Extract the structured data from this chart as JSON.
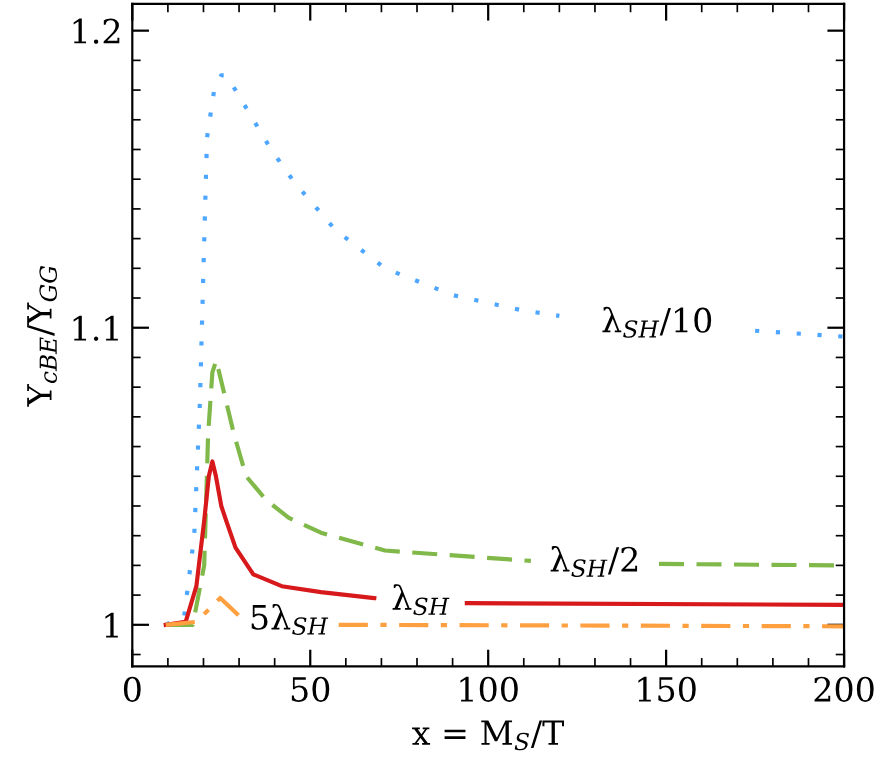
{
  "chart_data": {
    "type": "line",
    "xlabel": "x = M$_{S}$/T",
    "ylabel": "Y$_{cBE}$/Y$_{GG}$",
    "xlim": [
      0,
      200
    ],
    "ylim": [
      0.986,
      1.209
    ],
    "xticks": [
      0,
      50,
      100,
      150,
      200
    ],
    "yticks": [
      1,
      {
        "value": 1.1,
        "label": "1.1"
      },
      {
        "value": 1.2,
        "label": "1.2"
      }
    ],
    "grid": false,
    "legend": false,
    "series": [
      {
        "name": "λ$_{SH}$/10",
        "color": "#4da6ff",
        "line_style": "dotted",
        "x": [
          9.4,
          14.6,
          17.4,
          19,
          20,
          21,
          23,
          25,
          26.4,
          29,
          34,
          39,
          45.5,
          57,
          71,
          90,
          109,
          120,
          165,
          175,
          200
        ],
        "values": [
          1.0,
          1.003,
          1.03,
          1.075,
          1.12,
          1.164,
          1.18,
          1.185,
          1.185,
          1.18,
          1.17,
          1.16,
          1.149,
          1.133,
          1.12,
          1.111,
          1.106,
          1.104,
          null,
          1.099,
          1.097
        ]
      },
      {
        "name": "λ$_{SH}$/2",
        "color": "#80b84a",
        "line_style": "dashed",
        "x": [
          10,
          17,
          20.2,
          21.3,
          22.5,
          23.6,
          25,
          28.6,
          32,
          37.6,
          44,
          53,
          71,
          112,
          130,
          148,
          200
        ],
        "values": [
          1.0,
          1.0,
          1.02,
          1.064,
          1.085,
          1.089,
          1.082,
          1.064,
          1.05,
          1.042,
          1.036,
          1.031,
          1.025,
          1.0215,
          null,
          1.0205,
          1.02
        ]
      },
      {
        "name": "λ$_{SH}$",
        "color": "#d7191c",
        "line_style": "solid",
        "x": [
          9.4,
          15,
          18,
          20.2,
          21.5,
          22.5,
          23.5,
          25,
          26.4,
          29,
          34,
          42,
          53,
          68,
          81,
          94,
          200
        ],
        "values": [
          1.0,
          1.001,
          1.013,
          1.035,
          1.05,
          1.055,
          1.05,
          1.04,
          1.035,
          1.026,
          1.017,
          1.013,
          1.011,
          1.009,
          null,
          1.0073,
          1.0067
        ]
      },
      {
        "name": "5λ$_{SH}$",
        "color": "#ffa040",
        "line_style": "dashdot",
        "x": [
          9.4,
          18,
          24.7,
          30,
          44,
          58,
          200
        ],
        "values": [
          1.0,
          1.001,
          1.009,
          1.003,
          null,
          1.0,
          0.9995
        ]
      }
    ]
  }
}
